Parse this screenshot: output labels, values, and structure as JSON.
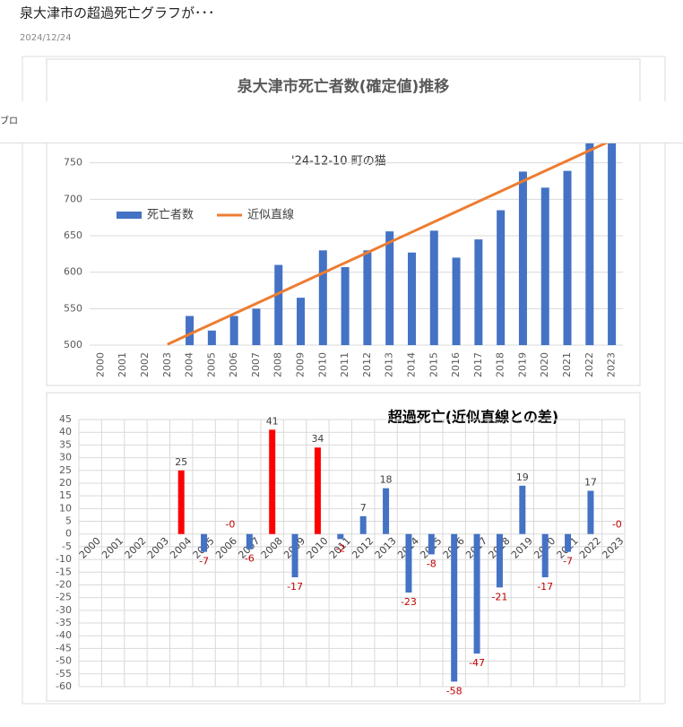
{
  "page": {
    "title": "泉大津市の超過死亡グラフが･･･",
    "date": "2024/12/24",
    "overlay_text": "ブロ"
  },
  "chart_data": [
    {
      "type": "bar",
      "title": "泉大津市死亡者数(確定値)推移",
      "annotation": "'24-12-10 町の猫",
      "categories": [
        "2000",
        "2001",
        "2002",
        "2003",
        "2004",
        "2005",
        "2006",
        "2007",
        "2008",
        "2009",
        "2010",
        "2011",
        "2012",
        "2013",
        "2014",
        "2015",
        "2016",
        "2017",
        "2018",
        "2019",
        "2020",
        "2021",
        "2022",
        "2023"
      ],
      "series": [
        {
          "name": "死亡者数",
          "color": "#4472c4",
          "values": [
            null,
            null,
            null,
            null,
            540,
            520,
            540,
            550,
            610,
            565,
            630,
            607,
            630,
            656,
            627,
            657,
            620,
            645,
            685,
            738,
            716,
            739,
            790,
            783
          ]
        },
        {
          "name": "近似直線",
          "type": "line",
          "color": "#ed7d31",
          "values": [
            null,
            null,
            null,
            501,
            515,
            529,
            543,
            557,
            571,
            585,
            599,
            613,
            627,
            641,
            655,
            669,
            683,
            697,
            711,
            725,
            739,
            753,
            767,
            781
          ]
        }
      ],
      "ylim": [
        500,
        800
      ],
      "yticks": [
        500,
        550,
        600,
        650,
        700,
        750
      ],
      "grid": true,
      "legend": "upper left"
    },
    {
      "type": "bar",
      "title": "超過死亡(近似直線との差)",
      "categories": [
        "2000",
        "2001",
        "2002",
        "2003",
        "2004",
        "2005",
        "2006",
        "2007",
        "2008",
        "2009",
        "2010",
        "2011",
        "2012",
        "2013",
        "2014",
        "2015",
        "2016",
        "2017",
        "2018",
        "2019",
        "2020",
        "2021",
        "2022",
        "2023"
      ],
      "values": [
        null,
        null,
        null,
        null,
        25,
        -7,
        0,
        -6,
        41,
        -17,
        34,
        -2,
        7,
        18,
        -23,
        -8,
        -58,
        -47,
        -21,
        19,
        -17,
        -7,
        17,
        0
      ],
      "value_labels": [
        null,
        null,
        null,
        null,
        "25",
        "-7",
        "-0",
        "-6",
        "41",
        "-17",
        "34",
        "-2",
        "7",
        "18",
        "-23",
        "-8",
        "-58",
        "-47",
        "-21",
        "19",
        "-17",
        "-7",
        "17",
        "-0"
      ],
      "colors": [
        null,
        null,
        null,
        null,
        "#ff0000",
        "#4472c4",
        "#4472c4",
        "#4472c4",
        "#ff0000",
        "#4472c4",
        "#ff0000",
        "#4472c4",
        "#4472c4",
        "#4472c4",
        "#4472c4",
        "#4472c4",
        "#4472c4",
        "#4472c4",
        "#4472c4",
        "#4472c4",
        "#4472c4",
        "#4472c4",
        "#4472c4",
        "#4472c4"
      ],
      "ylim": [
        -60,
        45
      ],
      "yticks": [
        -60,
        -55,
        -50,
        -45,
        -40,
        -35,
        -30,
        -25,
        -20,
        -15,
        -10,
        -5,
        0,
        5,
        10,
        15,
        20,
        25,
        30,
        35,
        40,
        45
      ],
      "grid": true
    }
  ]
}
